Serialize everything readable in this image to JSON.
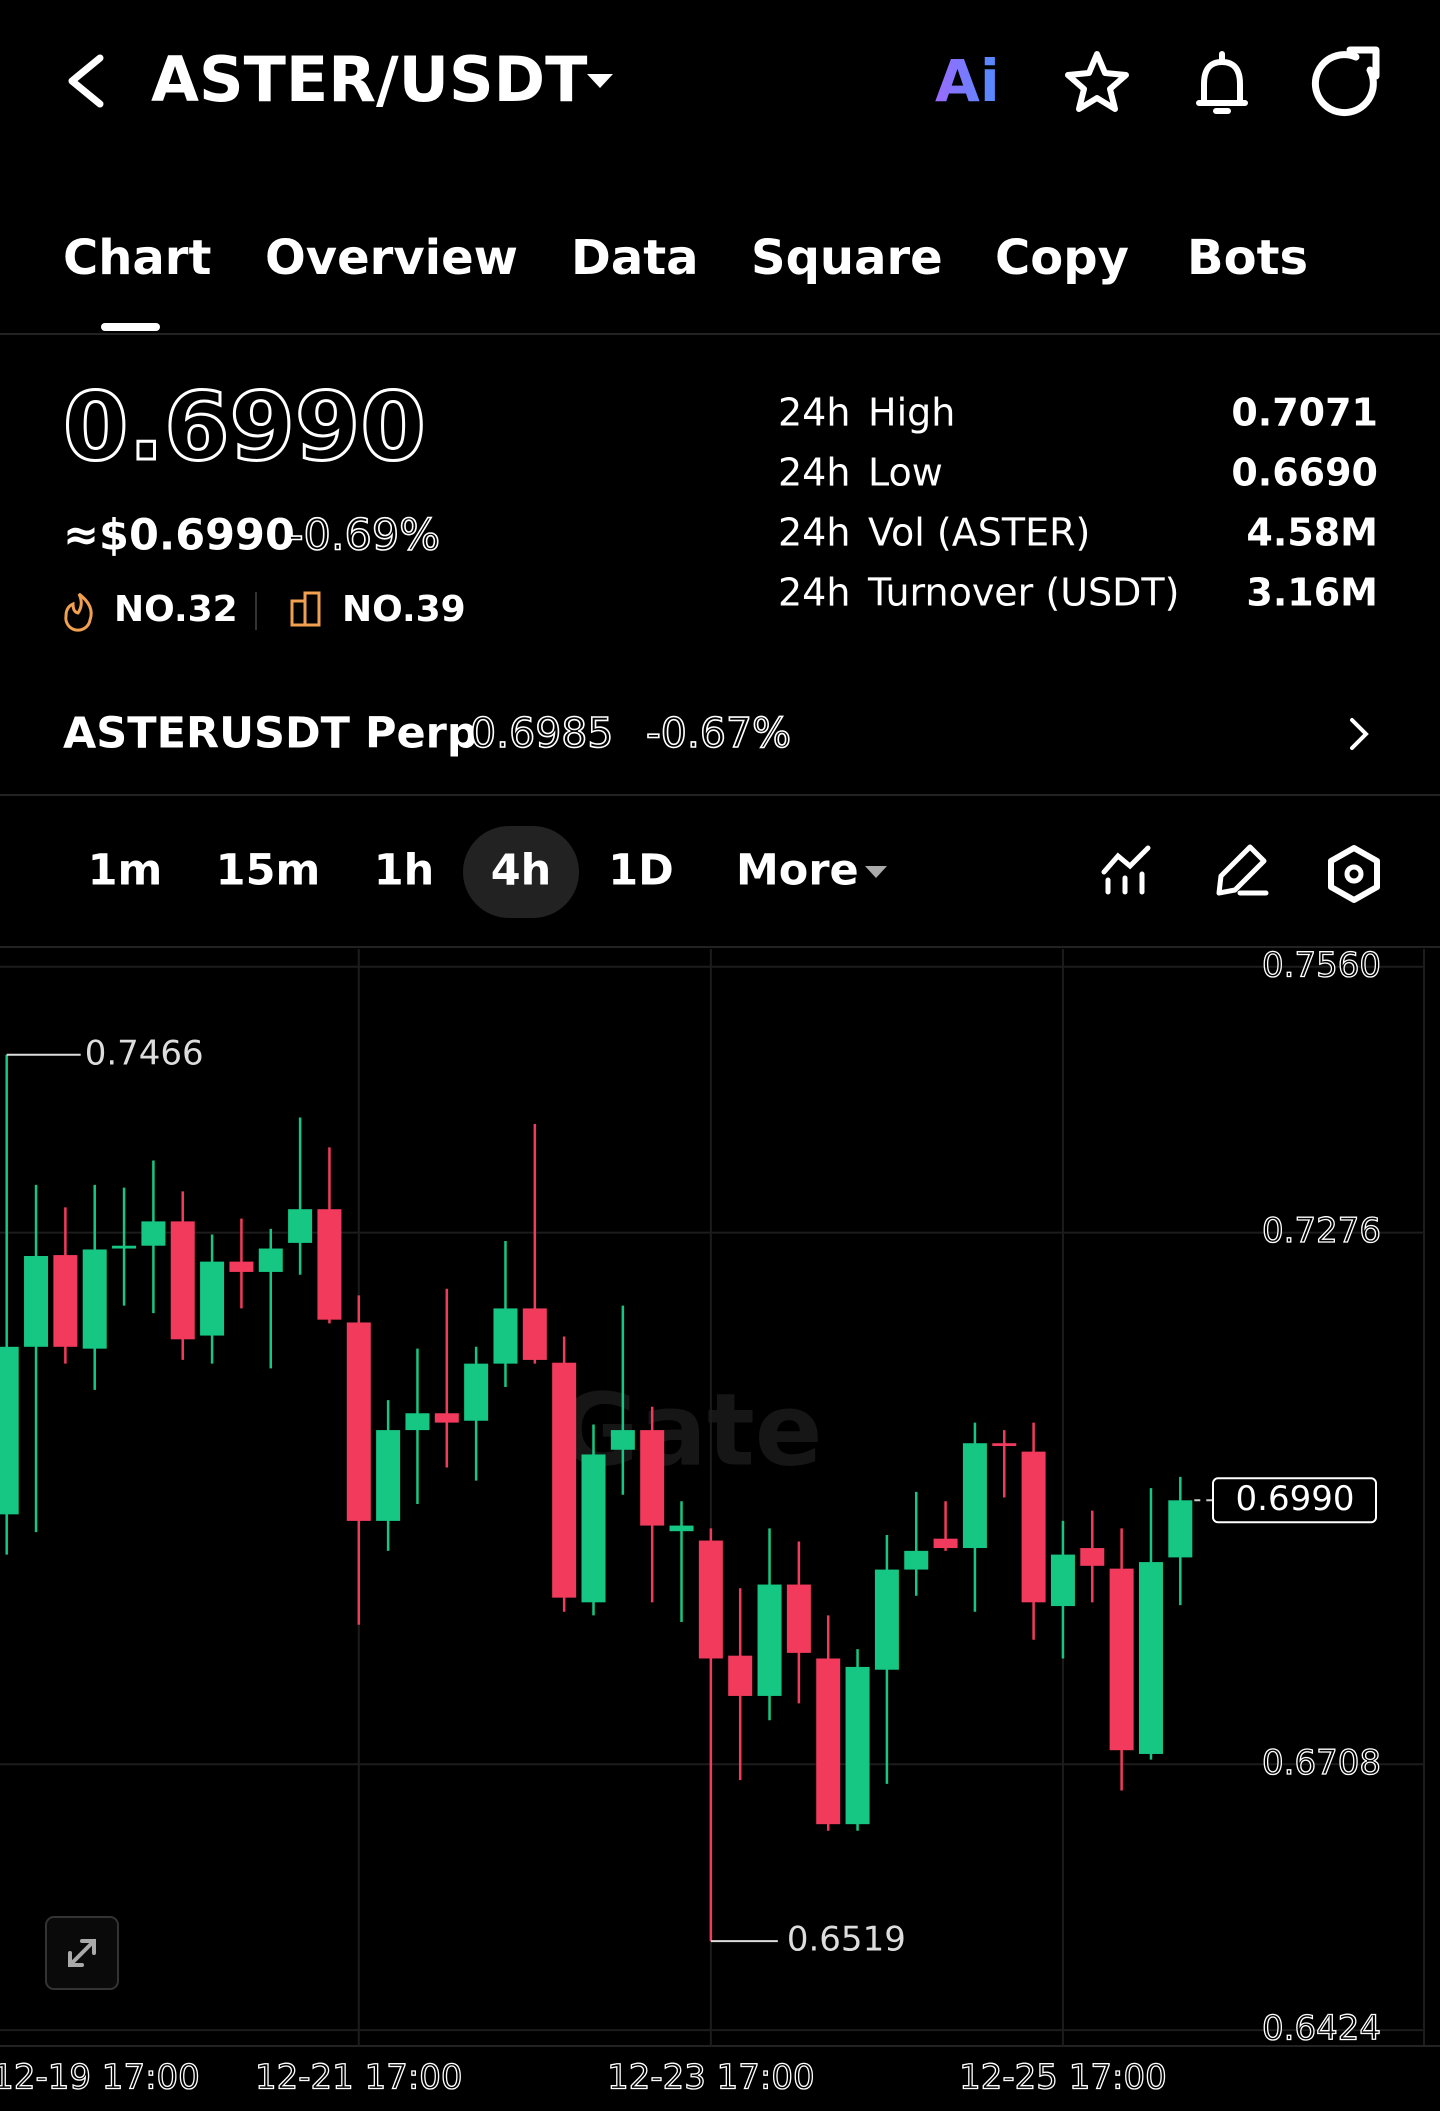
{
  "header": {
    "pair": "ASTER/USDT",
    "ai": "Ai"
  },
  "tabs": [
    "Chart",
    "Overview",
    "Data",
    "Square",
    "Copy",
    "Bots"
  ],
  "price": {
    "last": "0.6990",
    "usd": "≈$0.6990",
    "change": "-0.69%",
    "rank_hot": "NO.32",
    "rank_sector": "NO.39"
  },
  "stats": [
    {
      "period": "24h",
      "label": "High",
      "value": "0.7071"
    },
    {
      "period": "24h",
      "label": "Low",
      "value": "0.6690"
    },
    {
      "period": "24h",
      "label": "Vol (ASTER)",
      "value": "4.58M"
    },
    {
      "period": "24h",
      "label": "Turnover (USDT)",
      "value": "3.16M"
    }
  ],
  "perp": {
    "name": "ASTERUSDT Perp",
    "price": "0.6985",
    "change": "-0.67%"
  },
  "intervals": [
    "1m",
    "15m",
    "1h",
    "4h",
    "1D",
    "More"
  ],
  "chart_data": {
    "type": "candlestick",
    "watermark": "Gate",
    "categories": [
      "12-19 17:00",
      null,
      null,
      null,
      null,
      null,
      null,
      null,
      null,
      null,
      null,
      null,
      "12-21 17:00",
      null,
      null,
      null,
      null,
      null,
      null,
      null,
      null,
      null,
      null,
      null,
      "12-23 17:00",
      null,
      null,
      null,
      null,
      null,
      null,
      null,
      null,
      null,
      null,
      null,
      "12-25 17:00",
      null,
      null,
      null,
      null
    ],
    "open": [
      0.6975,
      0.7154,
      0.7252,
      0.7152,
      0.7259,
      0.7262,
      0.7288,
      0.7166,
      0.7245,
      0.7234,
      0.7265,
      0.7301,
      0.718,
      0.6968,
      0.7065,
      0.7083,
      0.7075,
      0.7136,
      0.7195,
      0.7137,
      0.6881,
      0.7044,
      0.7065,
      0.6957,
      0.6947,
      0.6824,
      0.6781,
      0.69,
      0.6821,
      0.6644,
      0.6809,
      0.6916,
      0.6949,
      0.6939,
      0.7051,
      0.7042,
      0.6877,
      0.6939,
      0.6917,
      0.6719,
      0.6929
    ],
    "high": [
      0.7466,
      0.7327,
      0.7303,
      0.7327,
      0.7324,
      0.7353,
      0.732,
      0.7274,
      0.7291,
      0.728,
      0.7399,
      0.7367,
      0.7209,
      0.7097,
      0.7152,
      0.7216,
      0.7154,
      0.7267,
      0.7392,
      0.7165,
      0.7071,
      0.7198,
      0.709,
      0.6989,
      0.696,
      0.6896,
      0.696,
      0.6946,
      0.6867,
      0.6831,
      0.6953,
      0.6999,
      0.6989,
      0.7073,
      0.7065,
      0.7073,
      0.6968,
      0.6979,
      0.696,
      0.7003,
      0.7015
    ],
    "low": [
      0.6932,
      0.6956,
      0.7136,
      0.7108,
      0.7198,
      0.719,
      0.714,
      0.7136,
      0.7195,
      0.7131,
      0.7231,
      0.7179,
      0.6857,
      0.6936,
      0.6986,
      0.7025,
      0.7011,
      0.7111,
      0.7136,
      0.6871,
      0.6867,
      0.6996,
      0.6881,
      0.686,
      0.6519,
      0.6691,
      0.6755,
      0.6773,
      0.6637,
      0.6637,
      0.6687,
      0.6888,
      0.6936,
      0.6871,
      0.6993,
      0.6841,
      0.6821,
      0.6881,
      0.668,
      0.6713,
      0.6878
    ],
    "close": [
      0.7154,
      0.7251,
      0.7154,
      0.7258,
      0.7262,
      0.7288,
      0.7162,
      0.7245,
      0.7234,
      0.7259,
      0.7301,
      0.7183,
      0.6968,
      0.7065,
      0.7083,
      0.7073,
      0.7136,
      0.7195,
      0.714,
      0.6886,
      0.7039,
      0.7065,
      0.6963,
      0.6963,
      0.6821,
      0.6781,
      0.69,
      0.6827,
      0.6644,
      0.6812,
      0.6916,
      0.6936,
      0.6939,
      0.7051,
      0.7048,
      0.6881,
      0.6932,
      0.692,
      0.6723,
      0.6924,
      0.699
    ],
    "up_color": "#16c784",
    "down_color": "#f23b5c",
    "ylim": [
      0.6407,
      0.7579
    ],
    "yticks": [
      {
        "value": 0.756,
        "label": "0.7560"
      },
      {
        "value": 0.7276,
        "label": "0.7276"
      },
      {
        "value": 0.6708,
        "label": "0.6708"
      },
      {
        "value": 0.6424,
        "label": "0.6424"
      }
    ],
    "grid": true,
    "max_marker": 0.7466,
    "min_marker": 0.6519,
    "last_price": {
      "value": 0.699,
      "label": "0.6990"
    }
  }
}
